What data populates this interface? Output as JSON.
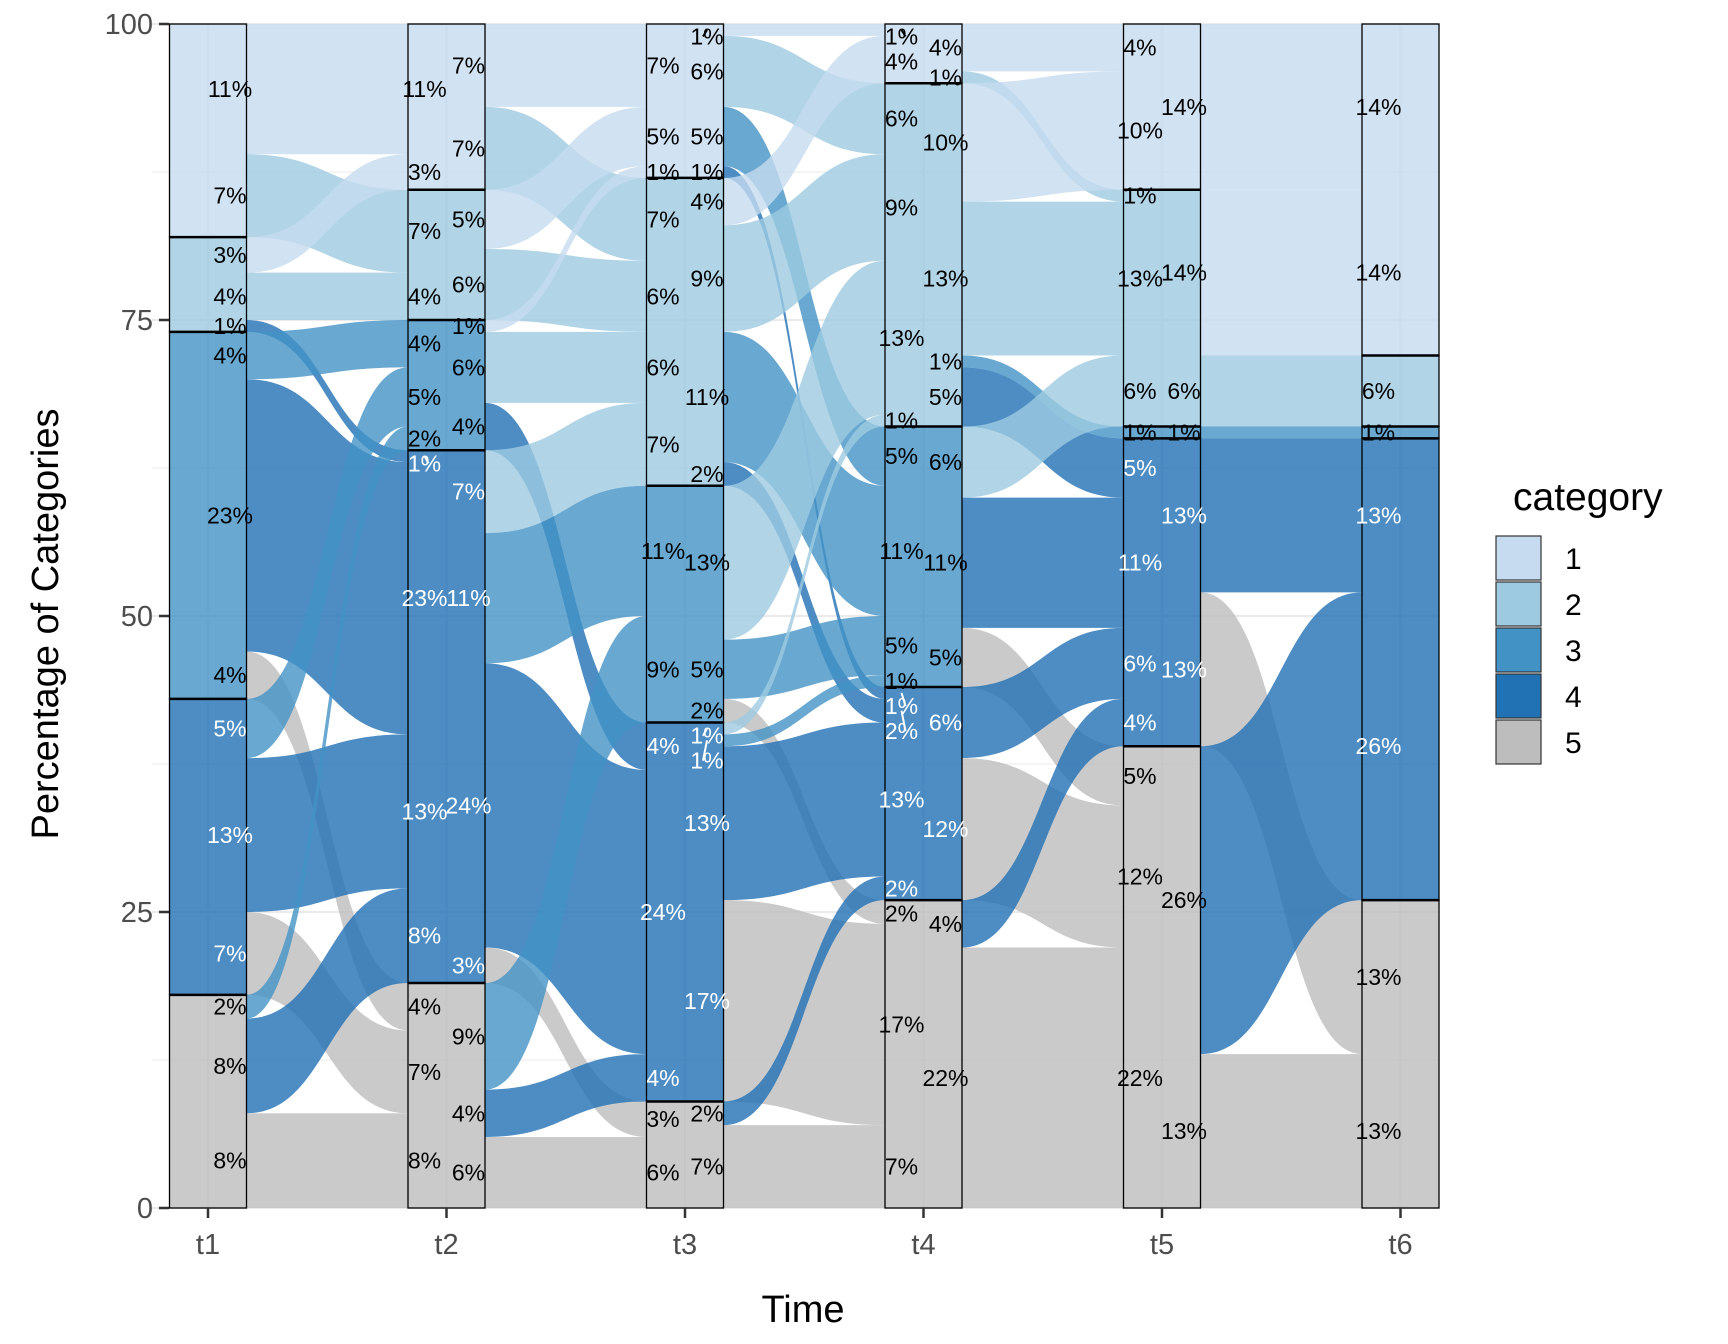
{
  "chart_data": {
    "type": "alluvial",
    "title": "",
    "xlabel": "Time",
    "ylabel": "Percentage of Categories",
    "ylim": [
      0,
      100
    ],
    "yticks": [
      0,
      25,
      50,
      75,
      100
    ],
    "times": [
      "t1",
      "t2",
      "t3",
      "t4",
      "t5",
      "t6"
    ],
    "categories": [
      "1",
      "2",
      "3",
      "4",
      "5"
    ],
    "colors": {
      "1": "#c6dbef",
      "2": "#9ecae1",
      "3": "#4292c6",
      "4": "#2171b5",
      "5": "#bdbdbd"
    },
    "legend": {
      "title": "category",
      "position": "right"
    },
    "strata": {
      "t1": [
        18,
        8,
        31,
        25,
        18
      ],
      "t2": [
        14,
        11,
        11,
        45,
        19
      ],
      "t3": [
        13,
        26,
        20,
        32,
        9
      ],
      "t4": [
        5,
        29,
        22,
        18,
        26
      ],
      "t5": [
        14,
        20,
        1,
        26,
        39
      ],
      "t6": [
        28,
        6,
        1,
        39,
        26
      ]
    },
    "flows": [
      {
        "from_time": "t1",
        "to_time": "t2",
        "links": [
          [
            1,
            1,
            11
          ],
          [
            1,
            2,
            7
          ],
          [
            2,
            1,
            3
          ],
          [
            2,
            2,
            4
          ],
          [
            2,
            4,
            1
          ],
          [
            3,
            3,
            4
          ],
          [
            3,
            4,
            23
          ],
          [
            3,
            5,
            4
          ],
          [
            4,
            3,
            5
          ],
          [
            4,
            4,
            13
          ],
          [
            4,
            5,
            7
          ],
          [
            5,
            3,
            2
          ],
          [
            5,
            4,
            8
          ],
          [
            5,
            5,
            8
          ]
        ]
      },
      {
        "from_time": "t2",
        "to_time": "t3",
        "links": [
          [
            1,
            1,
            7
          ],
          [
            1,
            2,
            7
          ],
          [
            2,
            1,
            5
          ],
          [
            2,
            2,
            6
          ],
          [
            3,
            1,
            1
          ],
          [
            3,
            2,
            6
          ],
          [
            3,
            4,
            4
          ],
          [
            4,
            2,
            7
          ],
          [
            4,
            3,
            11
          ],
          [
            4,
            4,
            24
          ],
          [
            4,
            5,
            3
          ],
          [
            5,
            3,
            9
          ],
          [
            5,
            4,
            4
          ],
          [
            5,
            5,
            6
          ]
        ]
      },
      {
        "from_time": "t3",
        "to_time": "t4",
        "links": [
          [
            1,
            1,
            1
          ],
          [
            1,
            2,
            6
          ],
          [
            1,
            3,
            5
          ],
          [
            1,
            4,
            1
          ],
          [
            2,
            1,
            4
          ],
          [
            2,
            2,
            9
          ],
          [
            2,
            3,
            11
          ],
          [
            2,
            4,
            2
          ],
          [
            3,
            2,
            13
          ],
          [
            3,
            3,
            5
          ],
          [
            3,
            5,
            2
          ],
          [
            4,
            2,
            1
          ],
          [
            4,
            3,
            1
          ],
          [
            4,
            4,
            13
          ],
          [
            4,
            5,
            17
          ],
          [
            5,
            4,
            2
          ],
          [
            5,
            5,
            7
          ]
        ]
      },
      {
        "from_time": "t4",
        "to_time": "t5",
        "links": [
          [
            1,
            1,
            4
          ],
          [
            1,
            2,
            1
          ],
          [
            2,
            1,
            10
          ],
          [
            2,
            2,
            13
          ],
          [
            2,
            3,
            1
          ],
          [
            2,
            4,
            5
          ],
          [
            3,
            2,
            6
          ],
          [
            3,
            4,
            11
          ],
          [
            3,
            5,
            5
          ],
          [
            4,
            4,
            6
          ],
          [
            4,
            5,
            12
          ],
          [
            5,
            4,
            4
          ],
          [
            5,
            5,
            22
          ]
        ]
      },
      {
        "from_time": "t5",
        "to_time": "t6",
        "links": [
          [
            1,
            1,
            14
          ],
          [
            2,
            1,
            14
          ],
          [
            2,
            2,
            6
          ],
          [
            3,
            3,
            1
          ],
          [
            4,
            4,
            13
          ],
          [
            4,
            5,
            13
          ],
          [
            5,
            4,
            26
          ],
          [
            5,
            5,
            13
          ]
        ]
      }
    ],
    "label_format": "{value}%",
    "grid": true
  }
}
